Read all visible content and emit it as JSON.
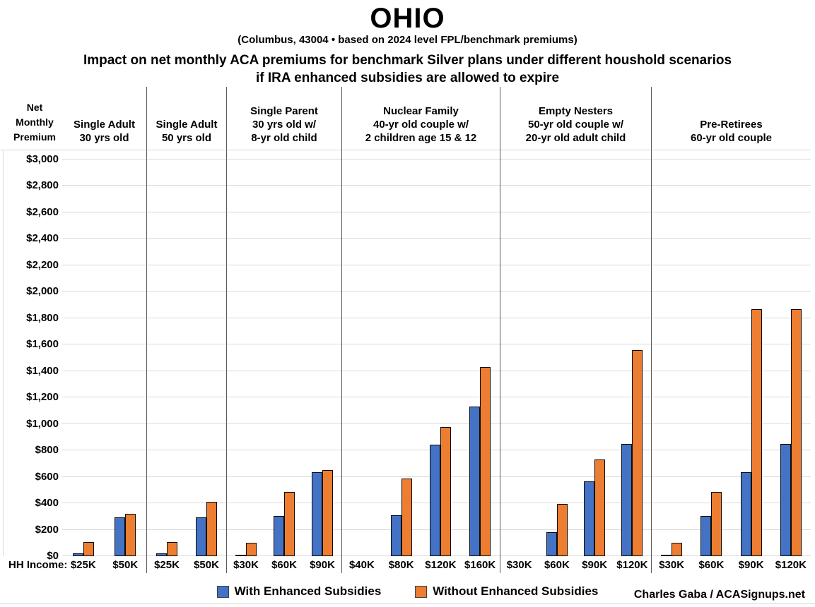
{
  "page": {
    "title": "OHIO",
    "subtitle": "(Columbus, 43004 • based on 2024 level FPL/benchmark premiums)",
    "heading_line1": "Impact on net monthly ACA premiums for benchmark Silver plans under different houshold scenarios",
    "heading_line2": "if IRA enhanced subsidies are allowed to expire",
    "credit": "Charles Gaba / ACASignups.net"
  },
  "axis": {
    "y_title_lines": [
      "Net",
      "Monthly",
      "Premium"
    ],
    "x_title": "HH Income:"
  },
  "legend": {
    "with_label": "With Enhanced Subsidies",
    "without_label": "Without Enhanced Subsidies"
  },
  "colors": {
    "with_subsidies": "#4472C4",
    "without_subsidies": "#ED7D31",
    "gridline": "#D9D9D9",
    "separator": "#595959"
  },
  "chart_data": {
    "type": "bar",
    "title": "Impact on net monthly ACA premiums for benchmark Silver plans under different houshold scenarios if IRA enhanced subsidies are allowed to expire",
    "location": "OHIO — Columbus, 43004 (2024 level FPL/benchmark premiums)",
    "xlabel": "HH Income:",
    "ylabel": "Net Monthly Premium",
    "ylim": [
      0,
      3000
    ],
    "ytick_step": 200,
    "ytick_labels": [
      "$0",
      "$200",
      "$400",
      "$600",
      "$800",
      "$1,000",
      "$1,200",
      "$1,400",
      "$1,600",
      "$1,800",
      "$2,000",
      "$2,200",
      "$2,400",
      "$2,600",
      "$2,800",
      "$3,000"
    ],
    "grid": true,
    "legend_position": "bottom",
    "series_names": [
      "With Enhanced Subsidies",
      "Without Enhanced Subsidies"
    ],
    "groups": [
      {
        "label_lines": [
          "Single Adult",
          "30 yrs old"
        ],
        "categories": [
          "$25K",
          "$50K"
        ],
        "with_enhanced": [
          21,
          291
        ],
        "without_enhanced": [
          104,
          320
        ],
        "flex": 120
      },
      {
        "label_lines": [
          "Single Adult",
          "50 yrs old"
        ],
        "categories": [
          "$25K",
          "$50K"
        ],
        "with_enhanced": [
          21,
          291
        ],
        "without_enhanced": [
          104,
          408
        ],
        "flex": 113
      },
      {
        "label_lines": [
          "Single Parent",
          "30 yrs old w/",
          "8-yr old child"
        ],
        "categories": [
          "$30K",
          "$60K",
          "$90K"
        ],
        "with_enhanced": [
          9,
          302,
          633
        ],
        "without_enhanced": [
          101,
          485,
          648
        ],
        "flex": 163
      },
      {
        "label_lines": [
          "Nuclear Family",
          "40-yr old couple w/",
          "2 children age 15 & 12"
        ],
        "categories": [
          "$40K",
          "$80K",
          "$120K",
          "$160K"
        ],
        "with_enhanced": [
          0,
          308,
          845,
          1130
        ],
        "without_enhanced": [
          0,
          584,
          975,
          1430
        ],
        "flex": 224
      },
      {
        "label_lines": [
          "Empty Nesters",
          "50-yr old couple w/",
          "20-yr old adult child"
        ],
        "categories": [
          "$30K",
          "$60K",
          "$90K",
          "$120K"
        ],
        "with_enhanced": [
          0,
          181,
          563,
          846
        ],
        "without_enhanced": [
          0,
          394,
          729,
          1559
        ],
        "flex": 214
      },
      {
        "label_lines": [
          "Pre-Retirees",
          "60-yr old couple"
        ],
        "categories": [
          "$30K",
          "$60K",
          "$90K",
          "$120K"
        ],
        "with_enhanced": [
          10,
          304,
          635,
          849
        ],
        "without_enhanced": [
          101,
          485,
          1864,
          1864
        ],
        "flex": 225
      }
    ]
  }
}
